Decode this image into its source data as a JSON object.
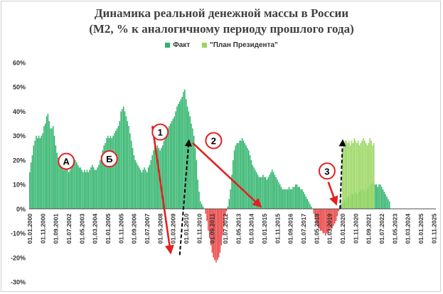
{
  "chart_data": {
    "type": "bar",
    "title": "Динамика реальной денежной массы в России",
    "subtitle": "(М2, % к аналогичному периоду прошлого года)",
    "ylabel": "",
    "xlabel": "",
    "ylim": [
      -30,
      60
    ],
    "y_ticks": [
      "60%",
      "50%",
      "40%",
      "30%",
      "20%",
      "10%",
      "0%",
      "-10%",
      "-20%",
      "-30%"
    ],
    "grid": false,
    "legend_position": "top",
    "x_tick_labels": [
      "01.01.2000",
      "01.11.2000",
      "01.09.2001",
      "01.07.2002",
      "01.05.2003",
      "01.03.2004",
      "01.01.2005",
      "01.11.2005",
      "01.09.2006",
      "01.07.2007",
      "01.05.2008",
      "01.03.2009",
      "01.01.2010",
      "01.11.2010",
      "01.09.2011",
      "01.07.2012",
      "01.05.2013",
      "01.03.2014",
      "01.01.2015",
      "01.11.2015",
      "01.09.2016",
      "01.07.2017",
      "01.05.2018",
      "01.03.2019",
      "01.01.2020",
      "01.11.2020",
      "01.09.2021",
      "01.07.2022",
      "01.05.2023",
      "01.03.2024",
      "01.01.2025",
      "01.11.2025"
    ],
    "series": [
      {
        "name": "Факт",
        "color": "#2eb36a",
        "negative_color": "#ea3f3f",
        "start": "2000-01",
        "frequency": "monthly",
        "values": [
          15,
          19,
          22,
          26,
          28,
          30,
          29,
          30,
          29,
          30,
          31,
          34,
          35,
          38,
          39,
          36,
          33,
          33,
          34,
          30,
          26,
          23,
          21,
          19,
          18,
          17,
          16,
          16,
          17,
          16,
          15,
          16,
          17,
          18,
          19,
          20,
          19,
          18,
          17,
          17,
          16,
          15,
          16,
          15,
          16,
          15,
          16,
          17,
          18,
          17,
          16,
          16,
          17,
          18,
          20,
          22,
          24,
          26,
          27,
          29,
          30,
          29,
          30,
          29,
          30,
          31,
          32,
          33,
          34,
          36,
          40,
          41,
          42,
          40,
          38,
          36,
          34,
          31,
          28,
          25,
          22,
          20,
          19,
          18,
          17,
          16,
          15,
          16,
          17,
          16,
          15,
          17,
          18,
          20,
          22,
          24,
          26,
          25,
          26,
          25,
          24,
          25,
          26,
          28,
          30,
          32,
          33,
          34,
          35,
          36,
          37,
          38,
          40,
          42,
          43,
          44,
          45,
          46,
          48,
          49,
          45,
          42,
          40,
          38,
          35,
          33,
          30,
          25,
          20,
          12,
          7,
          3,
          2,
          1,
          0,
          -2,
          -5,
          -9,
          -12,
          -15,
          -18,
          -20,
          -21,
          -22,
          -21,
          -20,
          -18,
          -15,
          -11,
          -7,
          -3,
          -1,
          1,
          4,
          8,
          14,
          20,
          24,
          26,
          27,
          27,
          28,
          28,
          29,
          28,
          27,
          26,
          25,
          24,
          22,
          20,
          18,
          17,
          16,
          15,
          14,
          13,
          13,
          13,
          14,
          13,
          13,
          12,
          13,
          14,
          15,
          16,
          15,
          14,
          13,
          12,
          11,
          10,
          9,
          8,
          8,
          8,
          8,
          8,
          9,
          8,
          8,
          9,
          9,
          10,
          10,
          9,
          9,
          8,
          8,
          7,
          6,
          5,
          4,
          3,
          2,
          1,
          0,
          -2,
          -4,
          -6,
          -7,
          -8,
          -9,
          -9,
          -10,
          -10,
          -11,
          -10,
          -10,
          -9,
          -8,
          -8,
          -7,
          -6,
          -5,
          -3,
          -1,
          1,
          2,
          3,
          3,
          4,
          4,
          5,
          5,
          5,
          6,
          6,
          6,
          7,
          6,
          7,
          7,
          8,
          8,
          8,
          7,
          8,
          8,
          9,
          10,
          10,
          11,
          10,
          10,
          10,
          9,
          10,
          10,
          9,
          8,
          7,
          6,
          5,
          4,
          3
        ]
      },
      {
        "name": "\"План Президента\"",
        "color": "#99d55e",
        "start": "2020-01",
        "frequency": "monthly",
        "values": [
          24,
          27,
          28,
          28,
          27,
          28,
          26,
          28,
          27,
          29,
          28,
          27,
          28,
          26,
          27,
          28,
          29,
          28,
          27,
          26,
          27,
          29,
          28,
          26,
          27
        ]
      }
    ],
    "annotations": {
      "circles": [
        {
          "label": "А",
          "x": "2002-05",
          "y": 19.5
        },
        {
          "label": "Б",
          "x": "2005-02",
          "y": 20.5
        },
        {
          "label": "1",
          "x": "2008-05",
          "y": 31.5
        },
        {
          "label": "2",
          "x": "2011-10",
          "y": 28
        },
        {
          "label": "3",
          "x": "2019-01",
          "y": 15.5
        }
      ],
      "red_arrows": [
        {
          "from": [
            "2007-11",
            34
          ],
          "to": [
            "2009-01",
            -18
          ]
        },
        {
          "from": [
            "2010-06",
            27
          ],
          "to": [
            "2014-10",
            1
          ]
        },
        {
          "from": [
            "2019-02",
            11
          ],
          "to": [
            "2019-08",
            2
          ]
        }
      ],
      "dashed_arrows": [
        {
          "from": [
            "2009-08",
            -19
          ],
          "to": [
            "2010-03",
            28
          ]
        },
        {
          "from": [
            "2019-11",
            0
          ],
          "to": [
            "2020-01",
            28
          ]
        }
      ]
    }
  }
}
